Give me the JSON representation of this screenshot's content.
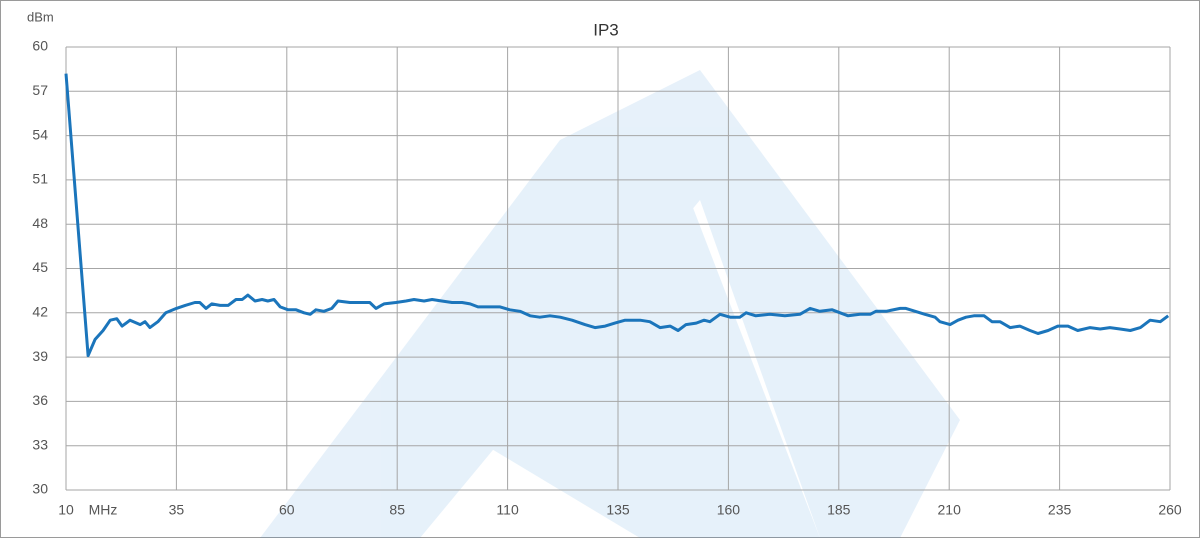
{
  "chart_data": {
    "type": "line",
    "title": "IP3",
    "y_unit": "dBm",
    "x_unit": "MHz",
    "xlim": [
      10,
      260
    ],
    "xticks": [
      10,
      35,
      60,
      85,
      110,
      135,
      160,
      185,
      210,
      235,
      260
    ],
    "ylim": [
      30,
      60
    ],
    "yticks": [
      30,
      33,
      36,
      39,
      42,
      45,
      48,
      51,
      54,
      57,
      60
    ],
    "grid": true,
    "series": [
      {
        "color": "#1b75bb",
        "x": [
          10,
          15,
          16.6,
          18.4,
          20,
          21.5,
          22.7,
          24.5,
          26.8,
          27.9,
          29,
          30.8,
          32.6,
          35,
          37,
          39.2,
          40.3,
          41.7,
          43,
          44.9,
          46.7,
          48.5,
          49.9,
          51.2,
          52.8,
          54.4,
          55.7,
          57.1,
          58.5,
          60.3,
          62.1,
          63.9,
          65.3,
          66.6,
          68.4,
          70.2,
          71.6,
          74.3,
          77,
          78.8,
          80.2,
          82,
          84.7,
          87,
          88.8,
          91.1,
          92.9,
          95.1,
          97.4,
          99.7,
          101.5,
          103.3,
          106,
          108.3,
          110.5,
          112.8,
          115.1,
          117.3,
          119.6,
          121.9,
          124.6,
          127.5,
          129.8,
          132.1,
          134.3,
          136.6,
          140,
          142.2,
          144.5,
          146.8,
          148.6,
          150.4,
          152.7,
          154.5,
          155.8,
          158.1,
          160.4,
          162.6,
          164,
          166.2,
          169.4,
          172.8,
          176.2,
          178.5,
          180.7,
          183.5,
          185.3,
          187.1,
          189.8,
          192.1,
          193.4,
          195.7,
          198.9,
          200.2,
          202.3,
          204.5,
          206.8,
          207.9,
          210.2,
          212,
          213.8,
          215.6,
          217.9,
          219.7,
          221.5,
          223.8,
          226,
          228.3,
          230.1,
          232.4,
          234.6,
          236.9,
          239.1,
          241.9,
          244.2,
          246.4,
          248.7,
          251,
          253.3,
          255.5,
          257.8,
          259.6
        ],
        "values": [
          58.2,
          39.1,
          40.2,
          40.8,
          41.5,
          41.6,
          41.1,
          41.5,
          41.2,
          41.4,
          41.0,
          41.4,
          42.0,
          42.3,
          42.5,
          42.7,
          42.7,
          42.3,
          42.6,
          42.5,
          42.5,
          42.9,
          42.9,
          43.2,
          42.8,
          42.9,
          42.8,
          42.9,
          42.4,
          42.2,
          42.2,
          42.0,
          41.9,
          42.2,
          42.1,
          42.3,
          42.8,
          42.7,
          42.7,
          42.7,
          42.3,
          42.6,
          42.7,
          42.8,
          42.9,
          42.8,
          42.9,
          42.8,
          42.7,
          42.7,
          42.6,
          42.4,
          42.4,
          42.4,
          42.2,
          42.1,
          41.8,
          41.7,
          41.8,
          41.7,
          41.5,
          41.2,
          41.0,
          41.1,
          41.3,
          41.5,
          41.5,
          41.4,
          41.0,
          41.1,
          40.8,
          41.2,
          41.3,
          41.5,
          41.4,
          41.9,
          41.7,
          41.7,
          42.0,
          41.8,
          41.9,
          41.8,
          41.9,
          42.3,
          42.1,
          42.2,
          42.0,
          41.8,
          41.9,
          41.9,
          42.1,
          42.1,
          42.3,
          42.3,
          42.1,
          41.9,
          41.7,
          41.4,
          41.2,
          41.5,
          41.7,
          41.8,
          41.8,
          41.4,
          41.4,
          41.0,
          41.1,
          40.8,
          40.6,
          40.8,
          41.1,
          41.1,
          40.8,
          41.0,
          40.9,
          41.0,
          40.9,
          40.8,
          41.0,
          41.5,
          41.4,
          41.8
        ]
      }
    ]
  }
}
